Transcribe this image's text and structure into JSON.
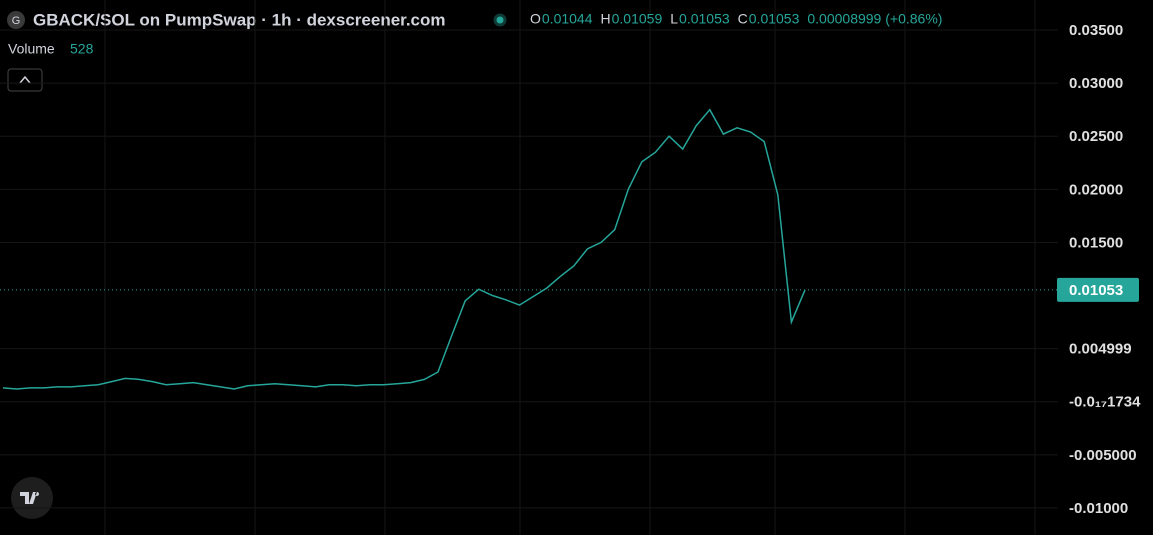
{
  "chart_data": {
    "type": "line",
    "title": "GBACK/SOL on PumpSwap · 1h · dexscreener.com",
    "ohlc": [
      {
        "label": "O",
        "value": "0.01044"
      },
      {
        "label": "H",
        "value": "0.01059"
      },
      {
        "label": "L",
        "value": "0.01053"
      },
      {
        "label": "C",
        "value": "0.01053"
      }
    ],
    "change": "0.00008999 (+0.86%)",
    "volume_label": "Volume",
    "volume_value": "528",
    "icon_letter": "G",
    "color": "#26a69a",
    "grid": true,
    "last_price": 0.01053,
    "ylim": [
      -0.01255,
      0.03783
    ],
    "yticks": [
      {
        "value": 0.035,
        "label": "0.03500"
      },
      {
        "value": 0.03,
        "label": "0.03000"
      },
      {
        "value": 0.025,
        "label": "0.02500"
      },
      {
        "value": 0.02,
        "label": "0.02000"
      },
      {
        "value": 0.015,
        "label": "0.01500"
      },
      0.004999,
      {
        "value": -1.734e-18,
        "label": "-0.0₁₇1734"
      },
      {
        "value": -0.005,
        "label": "-0.005000"
      },
      {
        "value": -0.01,
        "label": "-0.01000"
      }
    ],
    "values": [
      0.0013,
      0.0012,
      0.0013,
      0.0013,
      0.0014,
      0.0014,
      0.0015,
      0.0016,
      0.0019,
      0.0022,
      0.0021,
      0.0019,
      0.0016,
      0.0017,
      0.0018,
      0.0016,
      0.0014,
      0.0012,
      0.0015,
      0.0016,
      0.0017,
      0.0016,
      0.0015,
      0.0014,
      0.0016,
      0.0016,
      0.0015,
      0.0016,
      0.0016,
      0.0017,
      0.0018,
      0.0021,
      0.0028,
      0.0062,
      0.0095,
      0.0106,
      0.01,
      0.0096,
      0.0091,
      0.0099,
      0.0107,
      0.0118,
      0.0128,
      0.0144,
      0.015,
      0.0162,
      0.02,
      0.0226,
      0.0235,
      0.025,
      0.0238,
      0.026,
      0.0275,
      0.0252,
      0.0258,
      0.0254,
      0.0245,
      0.0195,
      0.0075,
      0.01053
    ]
  }
}
